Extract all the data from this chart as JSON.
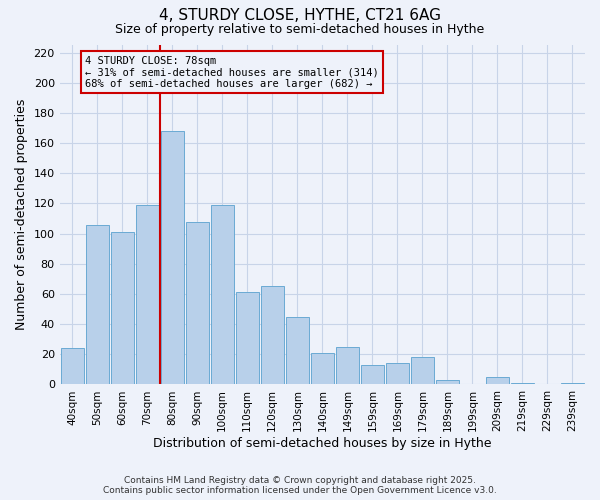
{
  "title": "4, STURDY CLOSE, HYTHE, CT21 6AG",
  "subtitle": "Size of property relative to semi-detached houses in Hythe",
  "xlabel": "Distribution of semi-detached houses by size in Hythe",
  "ylabel": "Number of semi-detached properties",
  "categories": [
    "40sqm",
    "50sqm",
    "60sqm",
    "70sqm",
    "80sqm",
    "90sqm",
    "100sqm",
    "110sqm",
    "120sqm",
    "130sqm",
    "140sqm",
    "149sqm",
    "159sqm",
    "169sqm",
    "179sqm",
    "189sqm",
    "199sqm",
    "209sqm",
    "219sqm",
    "229sqm",
    "239sqm"
  ],
  "values": [
    24,
    106,
    101,
    119,
    168,
    108,
    119,
    61,
    65,
    45,
    21,
    25,
    13,
    14,
    18,
    3,
    0,
    5,
    1,
    0,
    1
  ],
  "bar_color": "#b8d0ea",
  "bar_edgecolor": "#6aaad4",
  "background_color": "#eef2fa",
  "grid_color": "#c8d4e8",
  "vline_color": "#cc0000",
  "annotation_title": "4 STURDY CLOSE: 78sqm",
  "annotation_line1": "← 31% of semi-detached houses are smaller (314)",
  "annotation_line2": "68% of semi-detached houses are larger (682) →",
  "annotation_box_edgecolor": "#cc0000",
  "ylim": [
    0,
    225
  ],
  "yticks": [
    0,
    20,
    40,
    60,
    80,
    100,
    120,
    140,
    160,
    180,
    200,
    220
  ],
  "footer1": "Contains HM Land Registry data © Crown copyright and database right 2025.",
  "footer2": "Contains public sector information licensed under the Open Government Licence v3.0."
}
